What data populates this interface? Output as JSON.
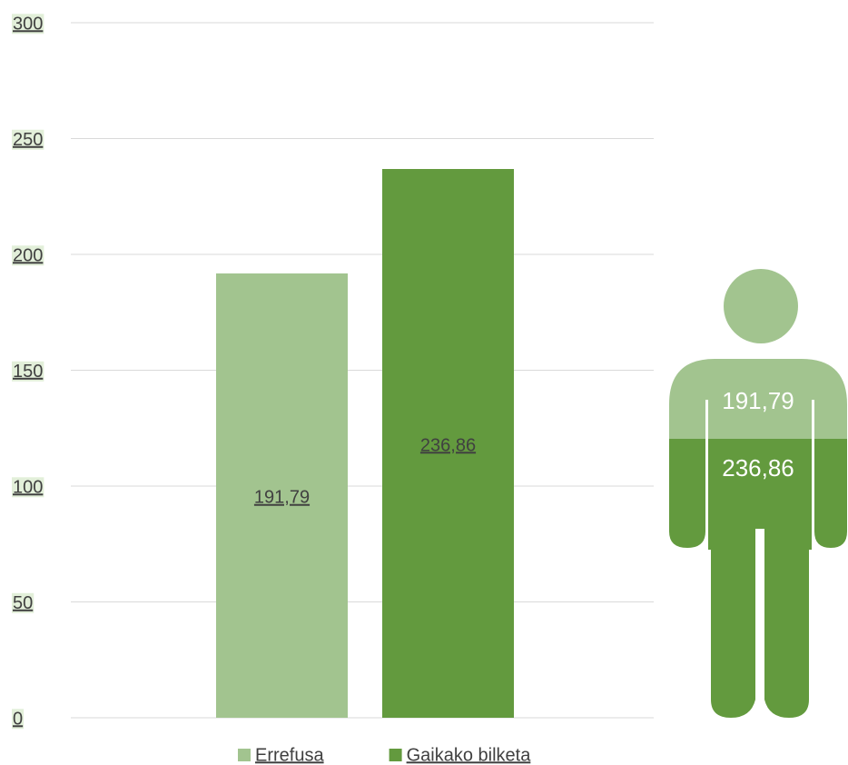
{
  "chart_data": {
    "type": "bar",
    "categories": [
      null
    ],
    "series": [
      {
        "name": "Errefusa",
        "color": "#a2c48f",
        "values": [
          191.79
        ],
        "value_labels": [
          "191,79"
        ]
      },
      {
        "name": "Gaikako bilketa",
        "color": "#639a3e",
        "values": [
          236.86
        ],
        "value_labels": [
          "236,86"
        ]
      }
    ],
    "ylim": [
      0,
      300
    ],
    "yticks": [
      0,
      50,
      100,
      150,
      200,
      250,
      300
    ],
    "grid": true
  }
}
